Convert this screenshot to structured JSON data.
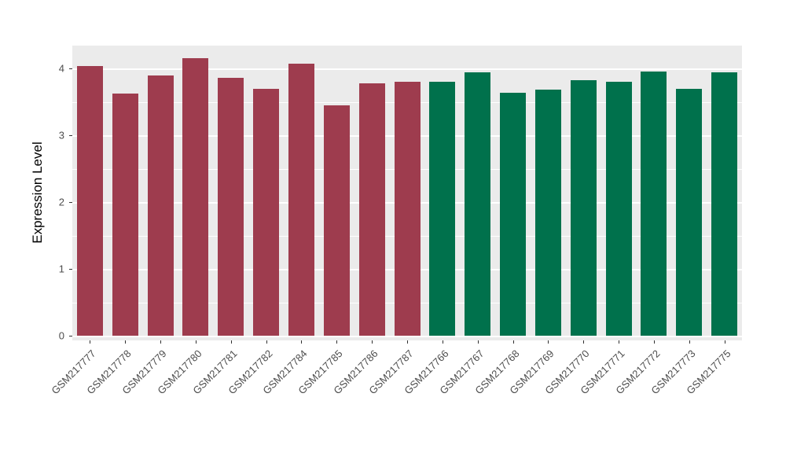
{
  "chart_data": {
    "type": "bar",
    "title": "",
    "xlabel": "",
    "ylabel": "Expression Level",
    "ylim": [
      0,
      4.35
    ],
    "yticks": [
      0,
      1,
      2,
      3,
      4
    ],
    "minor_yticks": [
      0.5,
      1.5,
      2.5,
      3.5
    ],
    "grid": true,
    "legend": "none",
    "panel_background": "#EBEBEB",
    "grid_color": "#FFFFFF",
    "categories": [
      "GSM217777",
      "GSM217778",
      "GSM217779",
      "GSM217780",
      "GSM217781",
      "GSM217782",
      "GSM217784",
      "GSM217785",
      "GSM217786",
      "GSM217787",
      "GSM217766",
      "GSM217767",
      "GSM217768",
      "GSM217769",
      "GSM217770",
      "GSM217771",
      "GSM217772",
      "GSM217773",
      "GSM217775"
    ],
    "values": [
      4.04,
      3.62,
      3.89,
      4.15,
      3.86,
      3.69,
      4.07,
      3.45,
      3.78,
      3.8,
      3.8,
      3.94,
      3.63,
      3.68,
      3.82,
      3.8,
      3.95,
      3.7,
      3.94
    ],
    "groups": [
      "group1",
      "group1",
      "group1",
      "group1",
      "group1",
      "group1",
      "group1",
      "group1",
      "group1",
      "group1",
      "group2",
      "group2",
      "group2",
      "group2",
      "group2",
      "group2",
      "group2",
      "group2",
      "group2"
    ],
    "palette": {
      "group1": "#9E3C4E",
      "group2": "#00714C"
    }
  }
}
